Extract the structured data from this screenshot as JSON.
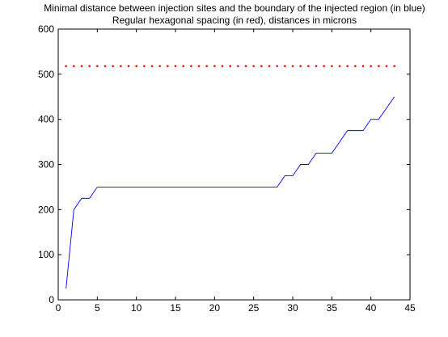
{
  "chart_data": {
    "type": "line",
    "title": "Minimal distance between injection sites and the boundary of the injected region (in blue)",
    "subtitle": "Regular hexagonal spacing (in red),  distances in microns",
    "xlabel": "",
    "ylabel": "",
    "xlim": [
      0,
      45
    ],
    "ylim": [
      0,
      600
    ],
    "xticks": [
      0,
      5,
      10,
      15,
      20,
      25,
      30,
      35,
      40,
      45
    ],
    "yticks": [
      0,
      100,
      200,
      300,
      400,
      500,
      600
    ],
    "grid": false,
    "series": [
      {
        "style": "solid",
        "color": "#0000ff",
        "points": [
          [
            1,
            25
          ],
          [
            2,
            200
          ],
          [
            3,
            225
          ],
          [
            4,
            225
          ],
          [
            5,
            250
          ],
          [
            6,
            250
          ],
          [
            7,
            250
          ],
          [
            8,
            250
          ],
          [
            9,
            250
          ],
          [
            10,
            250
          ],
          [
            11,
            250
          ],
          [
            12,
            250
          ],
          [
            13,
            250
          ],
          [
            14,
            250
          ],
          [
            15,
            250
          ],
          [
            16,
            250
          ],
          [
            17,
            250
          ],
          [
            18,
            250
          ],
          [
            19,
            250
          ],
          [
            20,
            250
          ],
          [
            21,
            250
          ],
          [
            22,
            250
          ],
          [
            23,
            250
          ],
          [
            24,
            250
          ],
          [
            25,
            250
          ],
          [
            26,
            250
          ],
          [
            27,
            250
          ],
          [
            28,
            250
          ],
          [
            29,
            275
          ],
          [
            30,
            275
          ],
          [
            31,
            300
          ],
          [
            32,
            300
          ],
          [
            33,
            325
          ],
          [
            34,
            325
          ],
          [
            35,
            325
          ],
          [
            36,
            350
          ],
          [
            37,
            375
          ],
          [
            38,
            375
          ],
          [
            39,
            375
          ],
          [
            40,
            400
          ],
          [
            41,
            400
          ],
          [
            42,
            425
          ],
          [
            43,
            450
          ]
        ]
      },
      {
        "style": "dotted",
        "color": "#ff0000",
        "x_start": 1,
        "x_end": 43,
        "x_step": 1,
        "value": 518
      }
    ]
  }
}
